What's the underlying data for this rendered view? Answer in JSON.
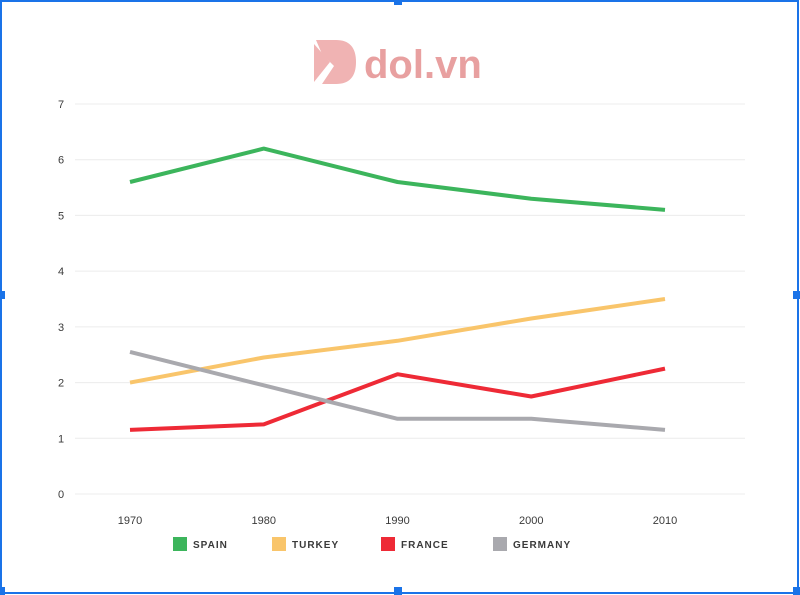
{
  "watermark": {
    "text": "dol.vn",
    "color": "#e8a0a0"
  },
  "chart_data": {
    "type": "line",
    "x": [
      "1970",
      "1980",
      "1990",
      "2000",
      "2010"
    ],
    "ylim": [
      0,
      7
    ],
    "yticks": [
      "0",
      "1",
      "2",
      "3",
      "4",
      "5",
      "6",
      "7"
    ],
    "grid": true,
    "legend_position": "bottom",
    "series": [
      {
        "name": "SPAIN",
        "color": "#3cb55c",
        "values": [
          5.6,
          6.2,
          5.6,
          5.3,
          5.1
        ]
      },
      {
        "name": "TURKEY",
        "color": "#f9c56b",
        "values": [
          2.0,
          2.45,
          2.75,
          3.15,
          3.5
        ]
      },
      {
        "name": "FRANCE",
        "color": "#ee2a36",
        "values": [
          1.15,
          1.25,
          2.15,
          1.75,
          2.25
        ]
      },
      {
        "name": "GERMANY",
        "color": "#a9a9ae",
        "values": [
          2.55,
          1.95,
          1.35,
          1.35,
          1.15
        ]
      }
    ]
  }
}
